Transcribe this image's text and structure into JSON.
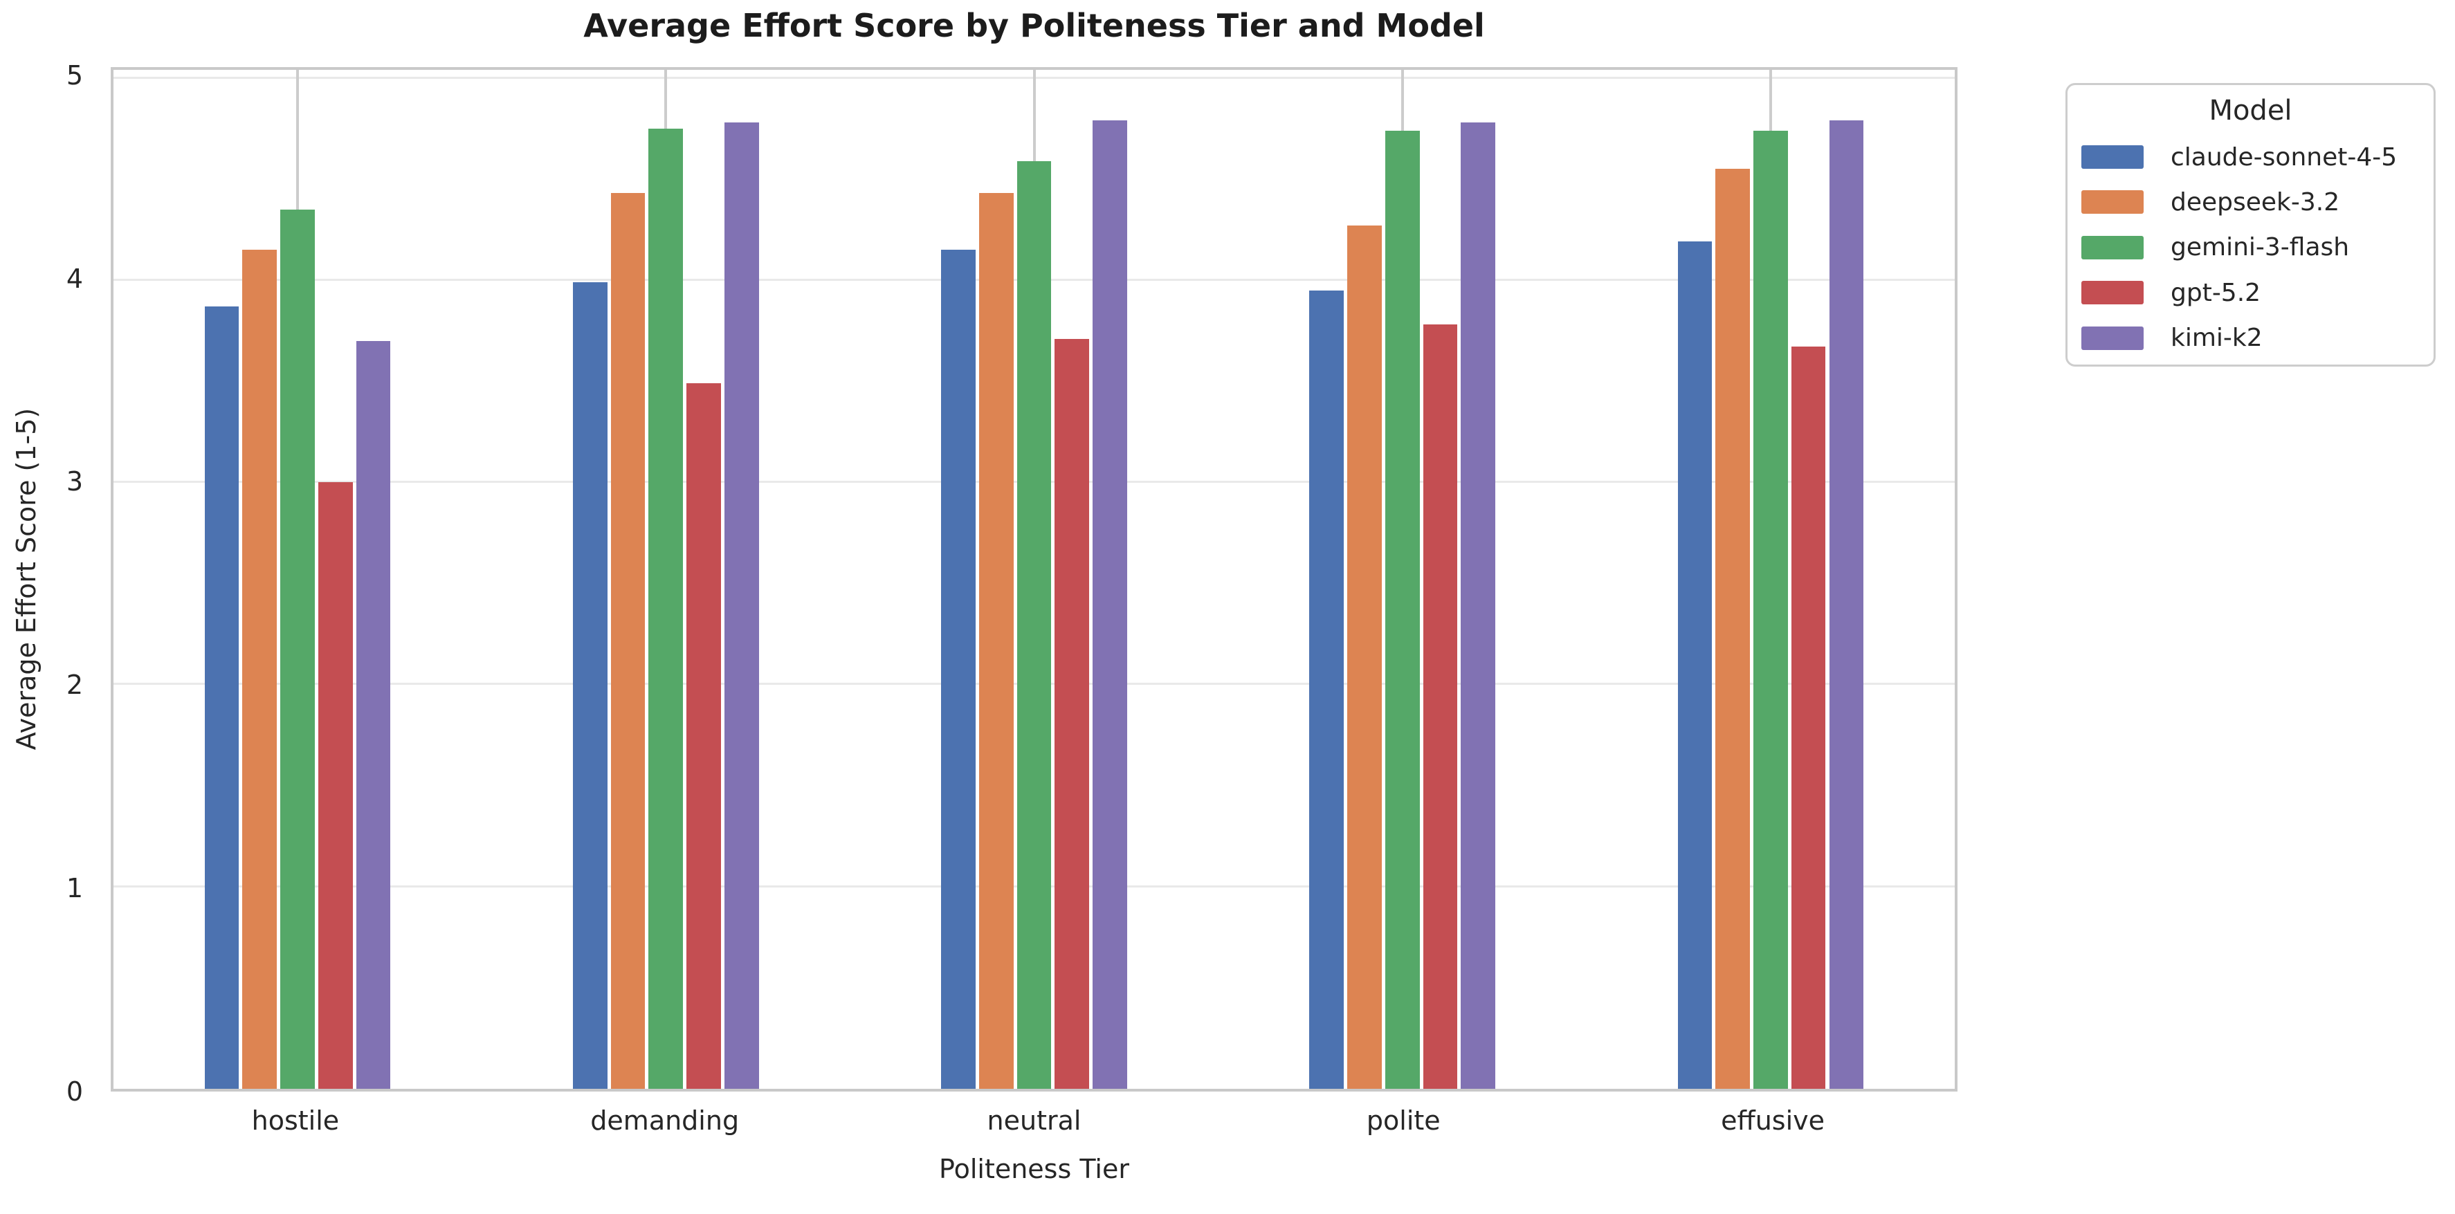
{
  "title": "Average Effort Score by Politeness Tier and Model",
  "x_axis": {
    "label": "Politeness Tier",
    "tick_labels": [
      "hostile",
      "demanding",
      "neutral",
      "polite",
      "effusive"
    ]
  },
  "y_axis": {
    "label": "Average Effort Score (1-5)",
    "tick_labels": [
      "0",
      "1",
      "2",
      "3",
      "4",
      "5"
    ]
  },
  "legend": {
    "title": "Model",
    "items": [
      {
        "label": "claude-sonnet-4-5",
        "color": "#4C72B0"
      },
      {
        "label": "deepseek-3.2",
        "color": "#DD8452"
      },
      {
        "label": "gemini-3-flash",
        "color": "#55A868"
      },
      {
        "label": "gpt-5.2",
        "color": "#C44E52"
      },
      {
        "label": "kimi-k2",
        "color": "#8172B3"
      }
    ]
  },
  "style": {
    "spine_color": "#c9c9c9",
    "h_grid_color": "#e9e9e9",
    "v_grid_color": "#cccccc",
    "text_color": "#262626",
    "background": "#ffffff"
  },
  "chart_data": {
    "type": "bar",
    "title": "Average Effort Score by Politeness Tier and Model",
    "xlabel": "Politeness Tier",
    "ylabel": "Average Effort Score (1-5)",
    "categories": [
      "hostile",
      "demanding",
      "neutral",
      "polite",
      "effusive"
    ],
    "series": [
      {
        "name": "claude-sonnet-4-5",
        "color": "#4C72B0",
        "values": [
          3.87,
          3.99,
          4.15,
          3.95,
          4.19
        ]
      },
      {
        "name": "deepseek-3.2",
        "color": "#DD8452",
        "values": [
          4.15,
          4.43,
          4.43,
          4.27,
          4.55
        ]
      },
      {
        "name": "gemini-3-flash",
        "color": "#55A868",
        "values": [
          4.35,
          4.75,
          4.59,
          4.74,
          4.74
        ]
      },
      {
        "name": "gpt-5.2",
        "color": "#C44E52",
        "values": [
          3.0,
          3.49,
          3.71,
          3.78,
          3.67
        ]
      },
      {
        "name": "kimi-k2",
        "color": "#8172B3",
        "values": [
          3.7,
          4.78,
          4.79,
          4.78,
          4.79
        ]
      }
    ],
    "ylim": [
      0,
      5
    ],
    "y_axis_top_value": 5.04,
    "y_ticks": [
      0,
      1,
      2,
      3,
      4,
      5
    ],
    "grid": true,
    "legend_position": "right-outside-top"
  }
}
